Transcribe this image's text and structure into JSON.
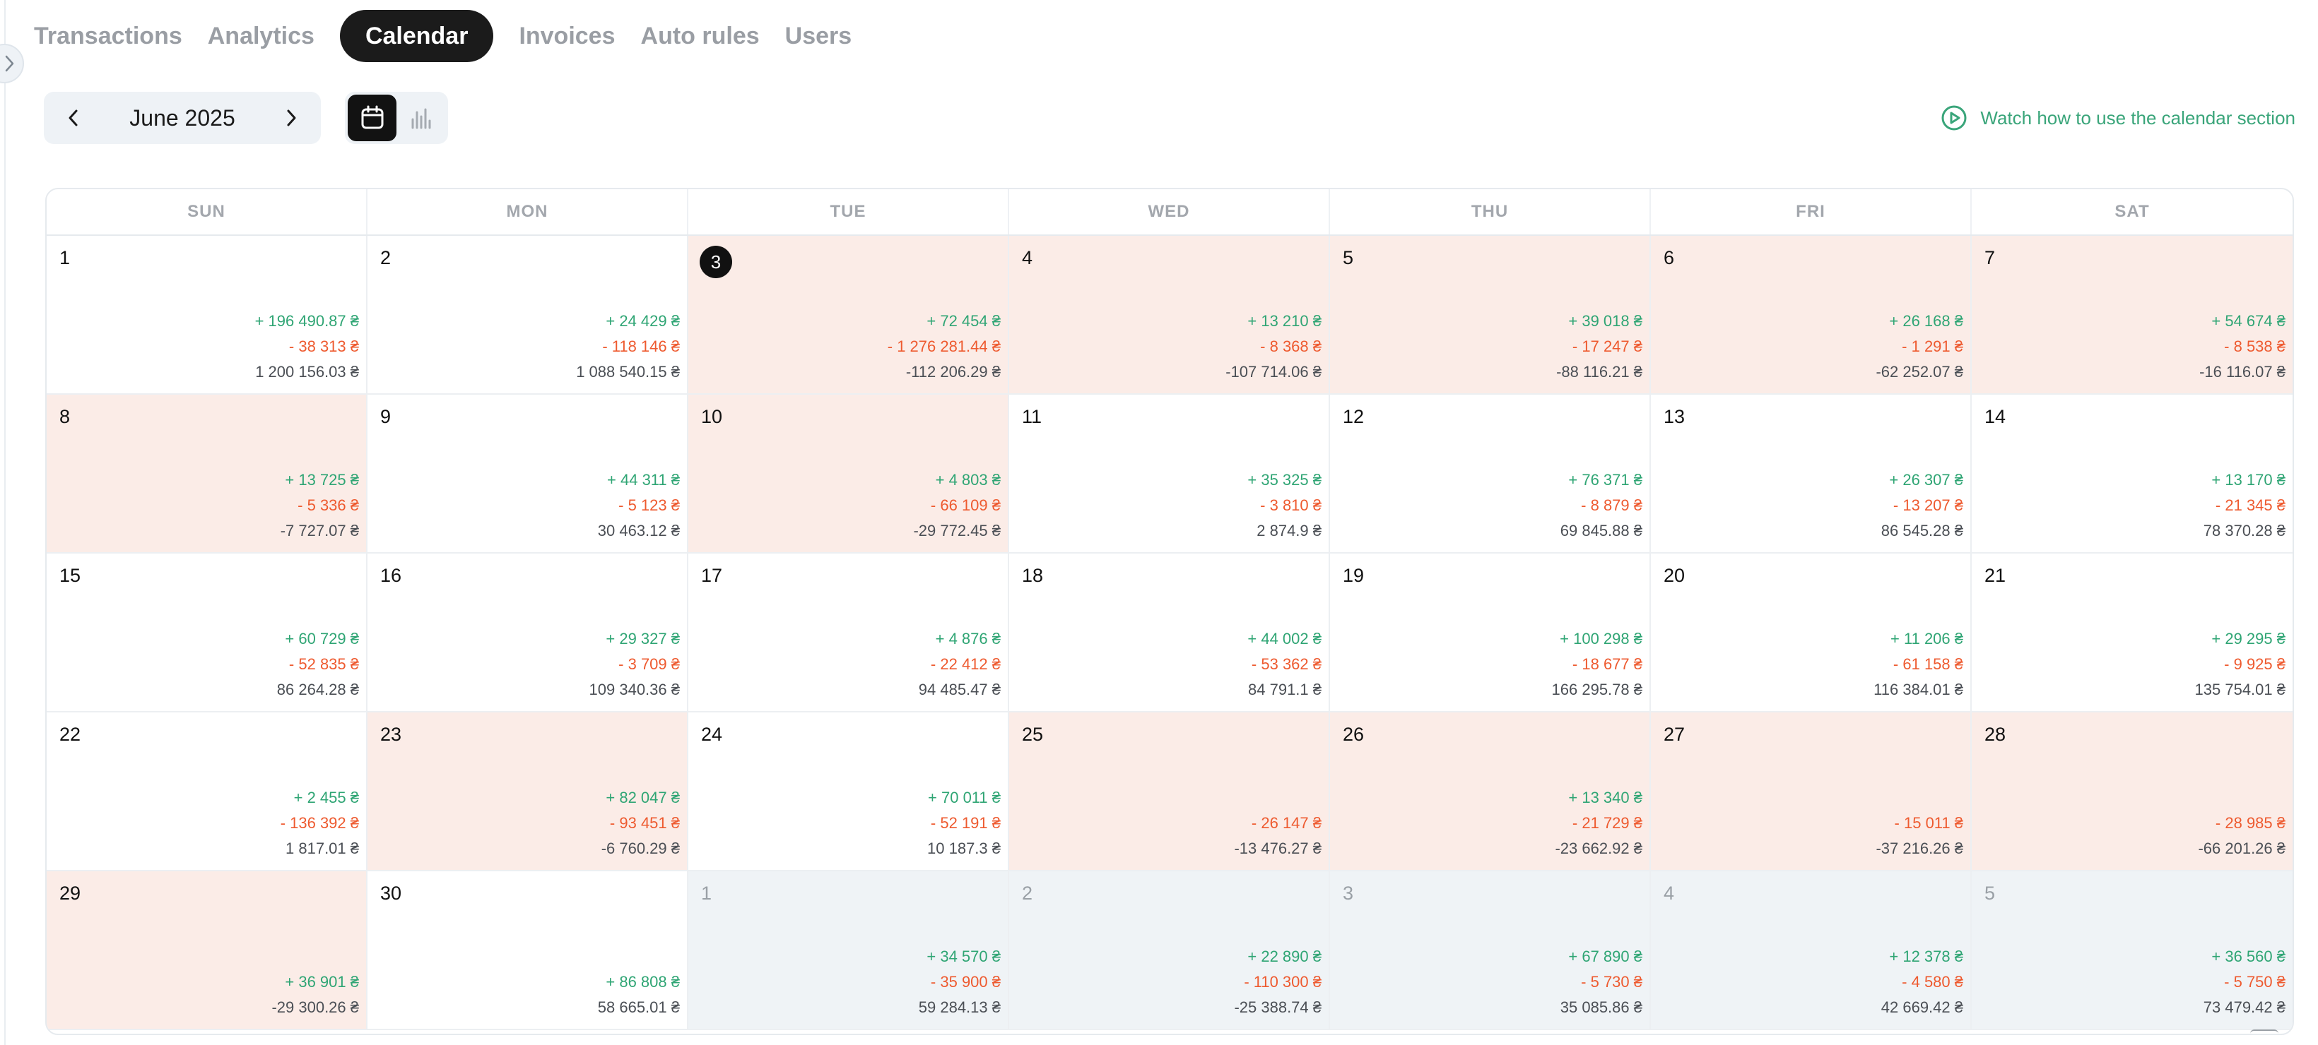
{
  "nav": {
    "tabs": [
      {
        "label": "Transactions",
        "active": false
      },
      {
        "label": "Analytics",
        "active": false
      },
      {
        "label": "Calendar",
        "active": true
      },
      {
        "label": "Invoices",
        "active": false
      },
      {
        "label": "Auto rules",
        "active": false
      },
      {
        "label": "Users",
        "active": false
      }
    ]
  },
  "toolbar": {
    "month": "June 2025",
    "watch_link": "Watch how to use the calendar section",
    "icons": {
      "prev": "chevron-left-icon",
      "next": "chevron-right-icon",
      "calendar_view": "calendar-icon",
      "chart_view": "bar-chart-icon",
      "play": "play-circle-icon"
    }
  },
  "colors": {
    "income": "#2fa574",
    "expense": "#ee5a2f",
    "balance": "#4b4f55",
    "negative_day_bg": "#fbece7",
    "other_month_bg": "#eff3f6",
    "accent": "#3aa57a"
  },
  "calendar": {
    "weekdays": [
      "SUN",
      "MON",
      "TUE",
      "WED",
      "THU",
      "FRI",
      "SAT"
    ],
    "days": [
      {
        "day": "1",
        "in": "+ 196 490.87 ₴",
        "out": "- 38 313 ₴",
        "bal": "1 200 156.03 ₴",
        "neg": false,
        "other": false,
        "today": false
      },
      {
        "day": "2",
        "in": "+ 24 429 ₴",
        "out": "- 118 146 ₴",
        "bal": "1 088 540.15 ₴",
        "neg": false,
        "other": false,
        "today": false
      },
      {
        "day": "3",
        "in": "+ 72 454 ₴",
        "out": "- 1 276 281.44 ₴",
        "bal": "-112 206.29 ₴",
        "neg": true,
        "other": false,
        "today": true
      },
      {
        "day": "4",
        "in": "+ 13 210 ₴",
        "out": "- 8 368 ₴",
        "bal": "-107 714.06 ₴",
        "neg": true,
        "other": false,
        "today": false
      },
      {
        "day": "5",
        "in": "+ 39 018 ₴",
        "out": "- 17 247 ₴",
        "bal": "-88 116.21 ₴",
        "neg": true,
        "other": false,
        "today": false
      },
      {
        "day": "6",
        "in": "+ 26 168 ₴",
        "out": "- 1 291 ₴",
        "bal": "-62 252.07 ₴",
        "neg": true,
        "other": false,
        "today": false
      },
      {
        "day": "7",
        "in": "+ 54 674 ₴",
        "out": "- 8 538 ₴",
        "bal": "-16 116.07 ₴",
        "neg": true,
        "other": false,
        "today": false
      },
      {
        "day": "8",
        "in": "+ 13 725 ₴",
        "out": "- 5 336 ₴",
        "bal": "-7 727.07 ₴",
        "neg": true,
        "other": false,
        "today": false
      },
      {
        "day": "9",
        "in": "+ 44 311 ₴",
        "out": "- 5 123 ₴",
        "bal": "30 463.12 ₴",
        "neg": false,
        "other": false,
        "today": false
      },
      {
        "day": "10",
        "in": "+ 4 803 ₴",
        "out": "- 66 109 ₴",
        "bal": "-29 772.45 ₴",
        "neg": true,
        "other": false,
        "today": false
      },
      {
        "day": "11",
        "in": "+ 35 325 ₴",
        "out": "- 3 810 ₴",
        "bal": "2 874.9 ₴",
        "neg": false,
        "other": false,
        "today": false
      },
      {
        "day": "12",
        "in": "+ 76 371 ₴",
        "out": "- 8 879 ₴",
        "bal": "69 845.88 ₴",
        "neg": false,
        "other": false,
        "today": false
      },
      {
        "day": "13",
        "in": "+ 26 307 ₴",
        "out": "- 13 207 ₴",
        "bal": "86 545.28 ₴",
        "neg": false,
        "other": false,
        "today": false
      },
      {
        "day": "14",
        "in": "+ 13 170 ₴",
        "out": "- 21 345 ₴",
        "bal": "78 370.28 ₴",
        "neg": false,
        "other": false,
        "today": false
      },
      {
        "day": "15",
        "in": "+ 60 729 ₴",
        "out": "- 52 835 ₴",
        "bal": "86 264.28 ₴",
        "neg": false,
        "other": false,
        "today": false
      },
      {
        "day": "16",
        "in": "+ 29 327 ₴",
        "out": "- 3 709 ₴",
        "bal": "109 340.36 ₴",
        "neg": false,
        "other": false,
        "today": false
      },
      {
        "day": "17",
        "in": "+ 4 876 ₴",
        "out": "- 22 412 ₴",
        "bal": "94 485.47 ₴",
        "neg": false,
        "other": false,
        "today": false
      },
      {
        "day": "18",
        "in": "+ 44 002 ₴",
        "out": "- 53 362 ₴",
        "bal": "84 791.1 ₴",
        "neg": false,
        "other": false,
        "today": false
      },
      {
        "day": "19",
        "in": "+ 100 298 ₴",
        "out": "- 18 677 ₴",
        "bal": "166 295.78 ₴",
        "neg": false,
        "other": false,
        "today": false
      },
      {
        "day": "20",
        "in": "+ 11 206 ₴",
        "out": "- 61 158 ₴",
        "bal": "116 384.01 ₴",
        "neg": false,
        "other": false,
        "today": false
      },
      {
        "day": "21",
        "in": "+ 29 295 ₴",
        "out": "- 9 925 ₴",
        "bal": "135 754.01 ₴",
        "neg": false,
        "other": false,
        "today": false
      },
      {
        "day": "22",
        "in": "+ 2 455 ₴",
        "out": "- 136 392 ₴",
        "bal": "1 817.01 ₴",
        "neg": false,
        "other": false,
        "today": false
      },
      {
        "day": "23",
        "in": "+ 82 047 ₴",
        "out": "- 93 451 ₴",
        "bal": "-6 760.29 ₴",
        "neg": true,
        "other": false,
        "today": false
      },
      {
        "day": "24",
        "in": "+ 70 011 ₴",
        "out": "- 52 191 ₴",
        "bal": "10 187.3 ₴",
        "neg": false,
        "other": false,
        "today": false
      },
      {
        "day": "25",
        "in": "",
        "out": "- 26 147 ₴",
        "bal": "-13 476.27 ₴",
        "neg": true,
        "other": false,
        "today": false
      },
      {
        "day": "26",
        "in": "+ 13 340 ₴",
        "out": "- 21 729 ₴",
        "bal": "-23 662.92 ₴",
        "neg": true,
        "other": false,
        "today": false
      },
      {
        "day": "27",
        "in": "",
        "out": "- 15 011 ₴",
        "bal": "-37 216.26 ₴",
        "neg": true,
        "other": false,
        "today": false
      },
      {
        "day": "28",
        "in": "",
        "out": "- 28 985 ₴",
        "bal": "-66 201.26 ₴",
        "neg": true,
        "other": false,
        "today": false
      },
      {
        "day": "29",
        "in": "+ 36 901 ₴",
        "out": "",
        "bal": "-29 300.26 ₴",
        "neg": true,
        "other": false,
        "today": false
      },
      {
        "day": "30",
        "in": "+ 86 808 ₴",
        "out": "",
        "bal": "58 665.01 ₴",
        "neg": false,
        "other": false,
        "today": false
      },
      {
        "day": "1",
        "in": "+ 34 570 ₴",
        "out": "- 35 900 ₴",
        "bal": "59 284.13 ₴",
        "neg": false,
        "other": true,
        "today": false
      },
      {
        "day": "2",
        "in": "+ 22 890 ₴",
        "out": "- 110 300 ₴",
        "bal": "-25 388.74 ₴",
        "neg": false,
        "other": true,
        "today": false
      },
      {
        "day": "3",
        "in": "+ 67 890 ₴",
        "out": "- 5 730 ₴",
        "bal": "35 085.86 ₴",
        "neg": false,
        "other": true,
        "today": false
      },
      {
        "day": "4",
        "in": "+ 12 378 ₴",
        "out": "- 4 580 ₴",
        "bal": "42 669.42 ₴",
        "neg": false,
        "other": true,
        "today": false
      },
      {
        "day": "5",
        "in": "+ 36 560 ₴",
        "out": "- 5 750 ₴",
        "bal": "73 479.42 ₴",
        "neg": false,
        "other": true,
        "today": false
      }
    ]
  }
}
